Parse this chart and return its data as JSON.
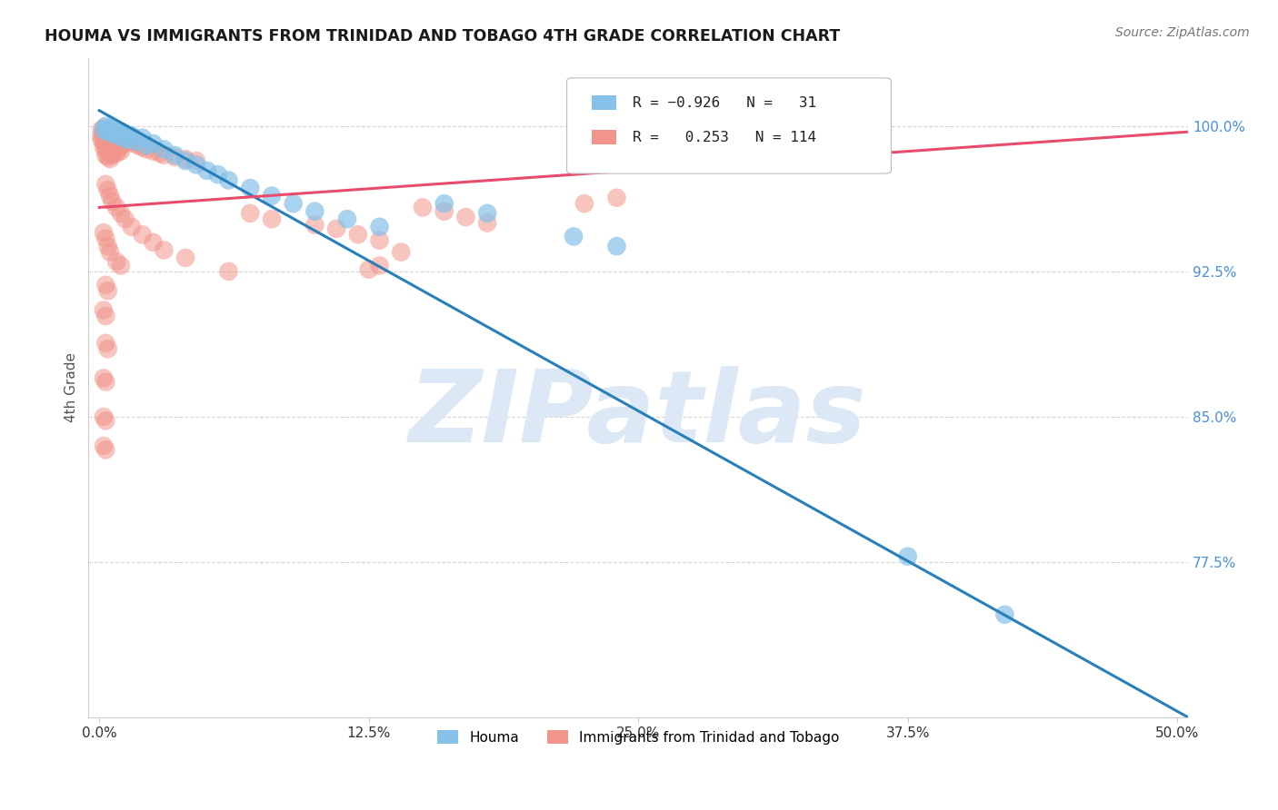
{
  "title": "HOUMA VS IMMIGRANTS FROM TRINIDAD AND TOBAGO 4TH GRADE CORRELATION CHART",
  "source": "Source: ZipAtlas.com",
  "ylabel": "4th Grade",
  "xlabel_ticks": [
    "0.0%",
    "12.5%",
    "25.0%",
    "37.5%",
    "50.0%"
  ],
  "xlabel_vals": [
    0.0,
    0.125,
    0.25,
    0.375,
    0.5
  ],
  "ylabel_ticks": [
    "100.0%",
    "92.5%",
    "85.0%",
    "77.5%"
  ],
  "ylabel_vals": [
    1.0,
    0.925,
    0.85,
    0.775
  ],
  "xlim": [
    -0.005,
    0.505
  ],
  "ylim": [
    0.695,
    1.035
  ],
  "houma_color": "#85c1e9",
  "immigrants_color": "#f1948a",
  "houma_edge_color": "#5b9dc4",
  "immigrants_edge_color": "#e07090",
  "trend_houma_color": "#2980b9",
  "trend_immigrants_color": "#e74c6c",
  "watermark": "ZIPatlas",
  "watermark_color": "#dce8f5",
  "background_color": "#ffffff",
  "grid_color": "#cccccc",
  "houma_trend_x": [
    0.0,
    0.505
  ],
  "houma_trend_y": [
    1.008,
    0.695
  ],
  "immigrants_trend_x": [
    0.0,
    0.505
  ],
  "immigrants_trend_y": [
    0.958,
    0.997
  ],
  "houma_scatter": [
    [
      0.002,
      0.998
    ],
    [
      0.003,
      1.0
    ],
    [
      0.004,
      0.997
    ],
    [
      0.005,
      0.999
    ],
    [
      0.006,
      0.996
    ],
    [
      0.007,
      0.998
    ],
    [
      0.008,
      0.997
    ],
    [
      0.009,
      0.995
    ],
    [
      0.01,
      0.997
    ],
    [
      0.011,
      0.994
    ],
    [
      0.012,
      0.996
    ],
    [
      0.013,
      0.993
    ],
    [
      0.015,
      0.995
    ],
    [
      0.017,
      0.992
    ],
    [
      0.02,
      0.994
    ],
    [
      0.022,
      0.99
    ],
    [
      0.025,
      0.991
    ],
    [
      0.03,
      0.988
    ],
    [
      0.035,
      0.985
    ],
    [
      0.04,
      0.982
    ],
    [
      0.045,
      0.98
    ],
    [
      0.05,
      0.977
    ],
    [
      0.055,
      0.975
    ],
    [
      0.06,
      0.972
    ],
    [
      0.07,
      0.968
    ],
    [
      0.08,
      0.964
    ],
    [
      0.09,
      0.96
    ],
    [
      0.1,
      0.956
    ],
    [
      0.115,
      0.952
    ],
    [
      0.13,
      0.948
    ],
    [
      0.16,
      0.96
    ],
    [
      0.18,
      0.955
    ],
    [
      0.22,
      0.943
    ],
    [
      0.24,
      0.938
    ],
    [
      0.375,
      0.778
    ],
    [
      0.42,
      0.748
    ]
  ],
  "immigrants_scatter": [
    [
      0.001,
      0.998
    ],
    [
      0.001,
      0.995
    ],
    [
      0.001,
      0.993
    ],
    [
      0.002,
      0.999
    ],
    [
      0.002,
      0.996
    ],
    [
      0.002,
      0.992
    ],
    [
      0.002,
      0.989
    ],
    [
      0.003,
      0.997
    ],
    [
      0.003,
      0.994
    ],
    [
      0.003,
      0.991
    ],
    [
      0.003,
      0.988
    ],
    [
      0.003,
      0.985
    ],
    [
      0.004,
      0.996
    ],
    [
      0.004,
      0.993
    ],
    [
      0.004,
      0.99
    ],
    [
      0.004,
      0.987
    ],
    [
      0.004,
      0.984
    ],
    [
      0.005,
      0.998
    ],
    [
      0.005,
      0.995
    ],
    [
      0.005,
      0.992
    ],
    [
      0.005,
      0.989
    ],
    [
      0.005,
      0.986
    ],
    [
      0.005,
      0.983
    ],
    [
      0.006,
      0.997
    ],
    [
      0.006,
      0.994
    ],
    [
      0.006,
      0.991
    ],
    [
      0.006,
      0.988
    ],
    [
      0.006,
      0.985
    ],
    [
      0.007,
      0.996
    ],
    [
      0.007,
      0.993
    ],
    [
      0.007,
      0.99
    ],
    [
      0.007,
      0.987
    ],
    [
      0.008,
      0.995
    ],
    [
      0.008,
      0.992
    ],
    [
      0.008,
      0.989
    ],
    [
      0.008,
      0.986
    ],
    [
      0.009,
      0.994
    ],
    [
      0.009,
      0.991
    ],
    [
      0.009,
      0.988
    ],
    [
      0.01,
      0.997
    ],
    [
      0.01,
      0.993
    ],
    [
      0.01,
      0.99
    ],
    [
      0.01,
      0.987
    ],
    [
      0.011,
      0.996
    ],
    [
      0.011,
      0.992
    ],
    [
      0.012,
      0.995
    ],
    [
      0.012,
      0.991
    ],
    [
      0.013,
      0.994
    ],
    [
      0.014,
      0.993
    ],
    [
      0.015,
      0.992
    ],
    [
      0.016,
      0.991
    ],
    [
      0.018,
      0.99
    ],
    [
      0.02,
      0.989
    ],
    [
      0.022,
      0.988
    ],
    [
      0.025,
      0.987
    ],
    [
      0.028,
      0.986
    ],
    [
      0.03,
      0.985
    ],
    [
      0.035,
      0.984
    ],
    [
      0.04,
      0.983
    ],
    [
      0.045,
      0.982
    ],
    [
      0.003,
      0.97
    ],
    [
      0.004,
      0.967
    ],
    [
      0.005,
      0.964
    ],
    [
      0.006,
      0.961
    ],
    [
      0.008,
      0.958
    ],
    [
      0.01,
      0.955
    ],
    [
      0.012,
      0.952
    ],
    [
      0.015,
      0.948
    ],
    [
      0.02,
      0.944
    ],
    [
      0.025,
      0.94
    ],
    [
      0.03,
      0.936
    ],
    [
      0.04,
      0.932
    ],
    [
      0.002,
      0.945
    ],
    [
      0.003,
      0.942
    ],
    [
      0.004,
      0.938
    ],
    [
      0.005,
      0.935
    ],
    [
      0.008,
      0.93
    ],
    [
      0.01,
      0.928
    ],
    [
      0.003,
      0.918
    ],
    [
      0.004,
      0.915
    ],
    [
      0.002,
      0.905
    ],
    [
      0.003,
      0.902
    ],
    [
      0.003,
      0.888
    ],
    [
      0.004,
      0.885
    ],
    [
      0.002,
      0.87
    ],
    [
      0.003,
      0.868
    ],
    [
      0.002,
      0.85
    ],
    [
      0.003,
      0.848
    ],
    [
      0.002,
      0.835
    ],
    [
      0.003,
      0.833
    ],
    [
      0.07,
      0.955
    ],
    [
      0.08,
      0.952
    ],
    [
      0.1,
      0.949
    ],
    [
      0.11,
      0.947
    ],
    [
      0.12,
      0.944
    ],
    [
      0.13,
      0.941
    ],
    [
      0.15,
      0.958
    ],
    [
      0.16,
      0.956
    ],
    [
      0.17,
      0.953
    ],
    [
      0.18,
      0.95
    ],
    [
      0.14,
      0.935
    ],
    [
      0.24,
      0.963
    ],
    [
      0.13,
      0.928
    ],
    [
      0.125,
      0.926
    ],
    [
      0.225,
      0.96
    ],
    [
      0.06,
      0.925
    ]
  ]
}
